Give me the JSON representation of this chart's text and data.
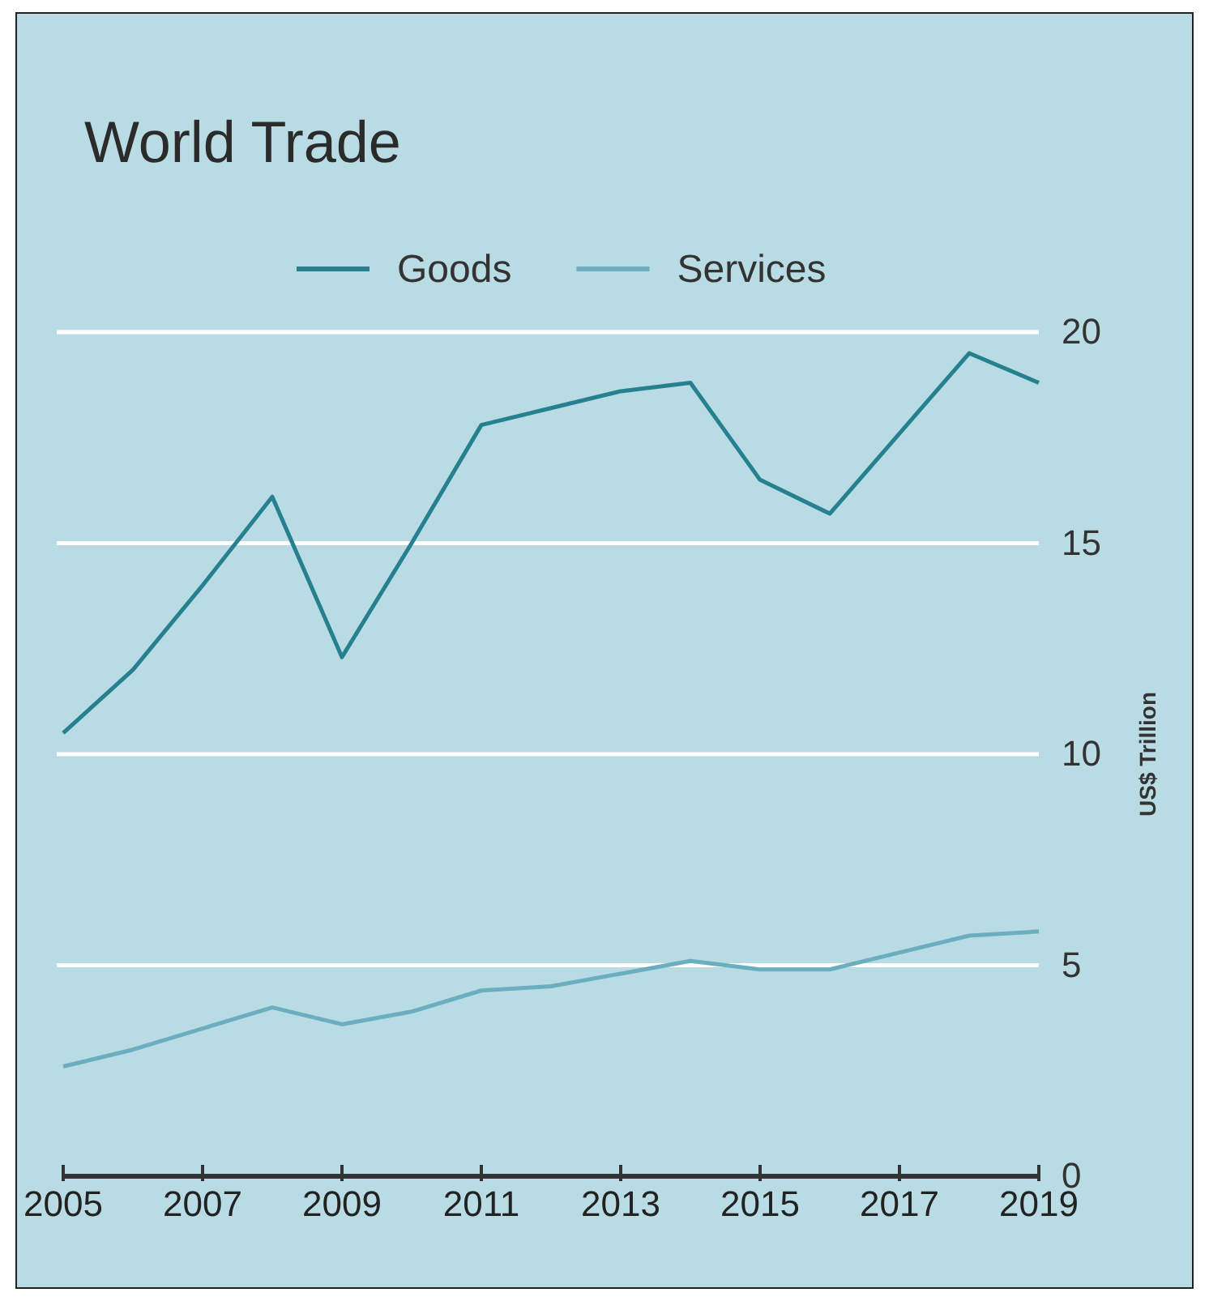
{
  "chart_data": {
    "type": "line",
    "title": "World Trade",
    "ylabel": "US$ Trillion",
    "x": [
      2005,
      2006,
      2007,
      2008,
      2009,
      2010,
      2011,
      2012,
      2013,
      2014,
      2015,
      2016,
      2017,
      2018,
      2019
    ],
    "series": [
      {
        "name": "Goods",
        "color": "#26808f",
        "values": [
          10.5,
          12.0,
          14.0,
          16.1,
          12.3,
          15.0,
          17.8,
          18.2,
          18.6,
          18.8,
          16.5,
          15.7,
          17.6,
          19.5,
          18.8
        ]
      },
      {
        "name": "Services",
        "color": "#6aaebf",
        "values": [
          2.6,
          3.0,
          3.5,
          4.0,
          3.6,
          3.9,
          4.4,
          4.5,
          4.8,
          5.1,
          4.9,
          4.9,
          5.3,
          5.7,
          5.8
        ]
      }
    ],
    "xlim": [
      2005,
      2019
    ],
    "xticks": [
      2005,
      2007,
      2009,
      2011,
      2013,
      2015,
      2017,
      2019
    ],
    "ylim": [
      0,
      20
    ],
    "yticks": [
      0,
      5,
      10,
      15,
      20
    ],
    "grid": "y",
    "legend": "top",
    "marker": "none",
    "line_style": "solid"
  }
}
